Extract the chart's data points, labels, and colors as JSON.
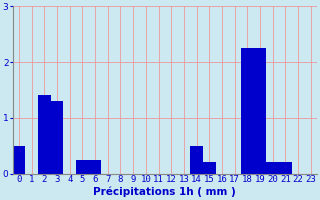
{
  "categories": [
    0,
    1,
    2,
    3,
    4,
    5,
    6,
    7,
    8,
    9,
    10,
    11,
    12,
    13,
    14,
    15,
    16,
    17,
    18,
    19,
    20,
    21,
    22,
    23
  ],
  "values": [
    0.5,
    0.0,
    1.4,
    1.3,
    0.0,
    0.25,
    0.25,
    0.0,
    0.0,
    0.0,
    0.0,
    0.0,
    0.0,
    0.0,
    0.5,
    0.2,
    0.0,
    0.0,
    2.25,
    2.25,
    0.2,
    0.2,
    0.0,
    0.0
  ],
  "bar_color": "#0000cc",
  "bg_color": "#cce8f0",
  "grid_color": "#ee9999",
  "xlabel": "Précipitations 1h ( mm )",
  "ylim": [
    0,
    3
  ],
  "yticks": [
    0,
    1,
    2,
    3
  ],
  "xlabel_color": "#0000cc",
  "tick_color": "#0000cc",
  "xlabel_fontsize": 7.5,
  "tick_fontsize": 6.5
}
